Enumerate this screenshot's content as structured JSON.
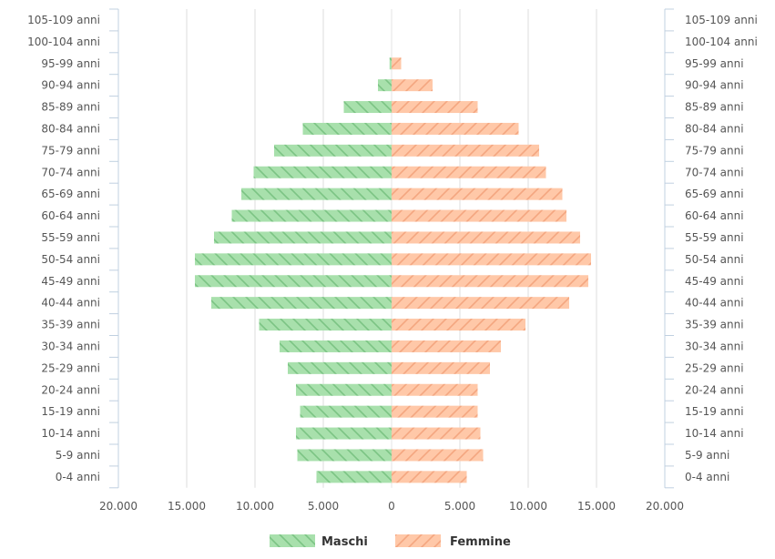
{
  "chart_data": {
    "type": "bar",
    "orientation": "horizontal",
    "layout": "population-pyramid",
    "categories": [
      "0-4 anni",
      "5-9 anni",
      "10-14 anni",
      "15-19 anni",
      "20-24 anni",
      "25-29 anni",
      "30-34 anni",
      "35-39 anni",
      "40-44 anni",
      "45-49 anni",
      "50-54 anni",
      "55-59 anni",
      "60-64 anni",
      "65-69 anni",
      "70-74 anni",
      "75-79 anni",
      "80-84 anni",
      "85-89 anni",
      "90-94 anni",
      "95-99 anni",
      "100-104 anni",
      "105-109 anni"
    ],
    "series": [
      {
        "name": "Maschi",
        "side": "left",
        "color": "#a8e0ac",
        "stripe": "#7cc484",
        "values": [
          5500,
          6900,
          7000,
          6700,
          7000,
          7600,
          8200,
          9700,
          13200,
          14400,
          14400,
          13000,
          11700,
          11000,
          10100,
          8600,
          6500,
          3500,
          1000,
          150,
          0,
          0
        ]
      },
      {
        "name": "Femmine",
        "side": "right",
        "color": "#ffc8a8",
        "stripe": "#f4a680",
        "values": [
          5500,
          6700,
          6500,
          6300,
          6300,
          7200,
          8000,
          9800,
          13000,
          14400,
          14600,
          13800,
          12800,
          12500,
          11300,
          10800,
          9300,
          6300,
          3000,
          700,
          0,
          0
        ]
      }
    ],
    "x_ticks": [
      "20.000",
      "15.000",
      "10.000",
      "5.000",
      "0",
      "5.000",
      "10.000",
      "15.000",
      "20.000"
    ],
    "xlim": [
      -20000,
      20000
    ],
    "grid": true,
    "legend_position": "bottom-center"
  }
}
